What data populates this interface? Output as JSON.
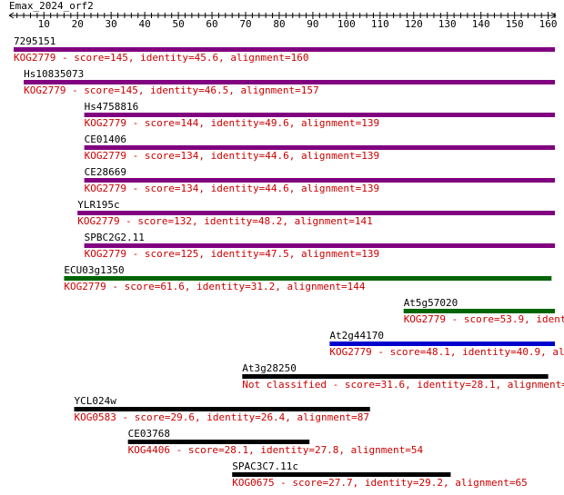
{
  "query": {
    "name": "Emax_2024_orf2",
    "length": 162
  },
  "ruler": {
    "min": 1,
    "max": 162,
    "labeled_ticks": [
      10,
      20,
      30,
      40,
      50,
      60,
      70,
      80,
      90,
      100,
      110,
      120,
      130,
      140,
      150,
      160
    ],
    "minor_step": 2
  },
  "colors": {
    "purple": "#800080",
    "green": "#006400",
    "blue": "#0000cd",
    "black": "#000000",
    "info_text": "#cc0000"
  },
  "hits": [
    {
      "name": "7295151",
      "start": 1,
      "end": 162,
      "color": "purple",
      "info": "KOG2779 - score=145, identity=45.6, alignment=160"
    },
    {
      "name": "Hs10835073",
      "start": 4,
      "end": 162,
      "color": "purple",
      "info": "KOG2779 - score=145, identity=46.5, alignment=157"
    },
    {
      "name": "Hs4758816",
      "start": 22,
      "end": 162,
      "color": "purple",
      "info": "KOG2779 - score=144, identity=49.6, alignment=139"
    },
    {
      "name": "CE01406",
      "start": 22,
      "end": 162,
      "color": "purple",
      "info": "KOG2779 - score=134, identity=44.6, alignment=139"
    },
    {
      "name": "CE28669",
      "start": 22,
      "end": 162,
      "color": "purple",
      "info": "KOG2779 - score=134, identity=44.6, alignment=139"
    },
    {
      "name": "YLR195c",
      "start": 20,
      "end": 162,
      "color": "purple",
      "info": "KOG2779 - score=132, identity=48.2, alignment=141"
    },
    {
      "name": "SPBC2G2.11",
      "start": 22,
      "end": 162,
      "color": "purple",
      "info": "KOG2779 - score=125, identity=47.5, alignment=139"
    },
    {
      "name": "ECU03g1350",
      "start": 16,
      "end": 161,
      "color": "green",
      "info": "KOG2779 - score=61.6, identity=31.2, alignment=144"
    },
    {
      "name": "At5g57020",
      "start": 117,
      "end": 162,
      "color": "green",
      "info": "KOG2779 - score=53.9, identit"
    },
    {
      "name": "At2g44170",
      "start": 95,
      "end": 162,
      "color": "blue",
      "info": "KOG2779 - score=48.1, identity=40.9, alignm"
    },
    {
      "name": "At3g28250",
      "start": 69,
      "end": 160,
      "color": "black",
      "info": "Not classified - score=31.6, identity=28.1, alignment=89"
    },
    {
      "name": "YCL024w",
      "start": 19,
      "end": 107,
      "color": "black",
      "info": "KOG0583 - score=29.6, identity=26.4, alignment=87"
    },
    {
      "name": "CE03768",
      "start": 35,
      "end": 89,
      "color": "black",
      "info": "KOG4406 - score=28.1, identity=27.8, alignment=54"
    },
    {
      "name": "SPAC3C7.11c",
      "start": 66,
      "end": 131,
      "color": "black",
      "info": "KOG0675 - score=27.7, identity=29.2, alignment=65"
    }
  ]
}
